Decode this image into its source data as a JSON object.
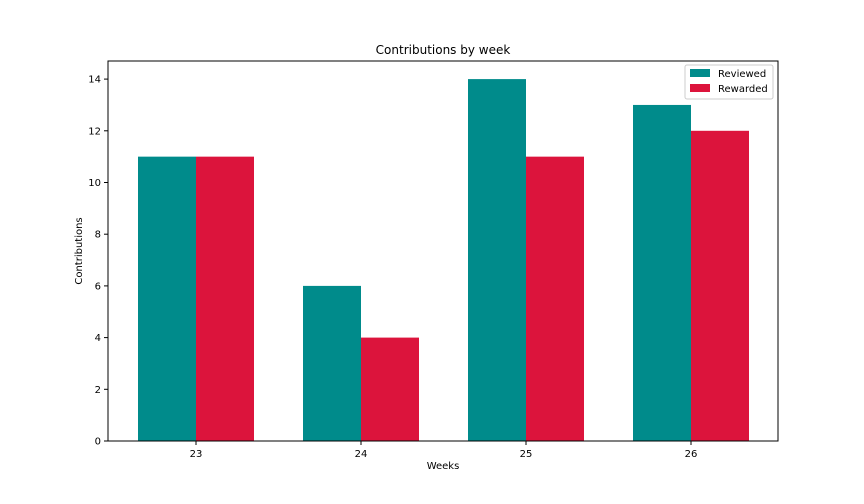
{
  "chart_data": {
    "type": "bar",
    "title": "Contributions by week",
    "xlabel": "Weeks",
    "ylabel": "Contributions",
    "categories": [
      "23",
      "24",
      "25",
      "26"
    ],
    "series": [
      {
        "name": "Reviewed",
        "values": [
          11,
          6,
          14,
          13
        ],
        "color": "#008b8b"
      },
      {
        "name": "Rewarded",
        "values": [
          11,
          4,
          11,
          12
        ],
        "color": "#dc143c"
      }
    ],
    "ylim": [
      0,
      14.7
    ],
    "yticks": [
      0,
      2,
      4,
      6,
      8,
      10,
      12,
      14
    ],
    "grid": false,
    "legend_position": "top-right"
  }
}
